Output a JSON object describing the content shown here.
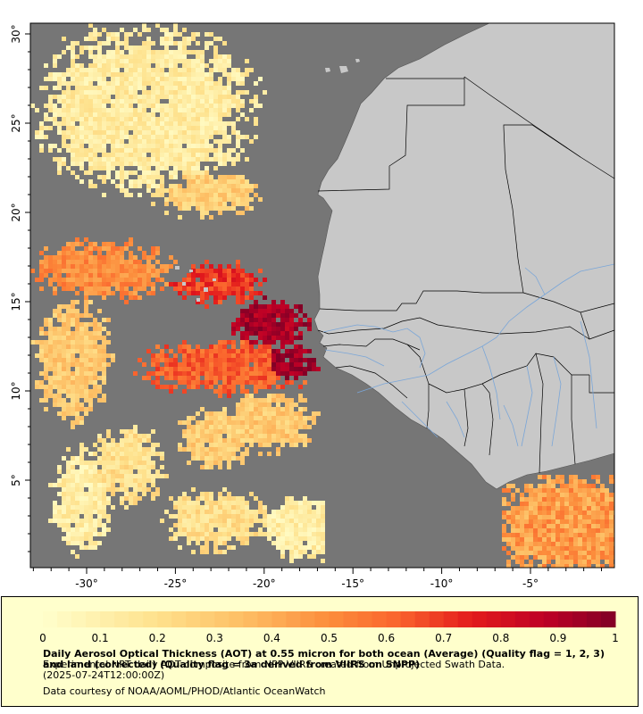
{
  "map": {
    "lat_ticks": [
      "30°",
      "25°",
      "20°",
      "15°",
      "10°",
      "5°"
    ],
    "lon_ticks": [
      "-30°",
      "-25°",
      "-20°",
      "-15°",
      "-10°",
      "-5°"
    ],
    "lat_range": [
      0,
      30.5
    ],
    "lon_range": [
      -33.2,
      0.5
    ],
    "colors": {
      "ocean_nodata": "#767676",
      "land": "#c8c8c8",
      "borders": "#000000",
      "rivers": "#7aa6d8",
      "frame": "#000000"
    }
  },
  "colorbar": {
    "ticks": [
      "0",
      "0.1",
      "0.2",
      "0.3",
      "0.4",
      "0.5",
      "0.6",
      "0.7",
      "0.8",
      "0.9",
      "1"
    ],
    "min": 0,
    "max": 1,
    "colormap": "YlOrRd"
  },
  "caption": {
    "title": "Daily Aerosol Optical Thickness (AOT) at 0.55 micron for both ocean (Average) (Quality flag = 1, 2, 3) and land (corrected) (Quality flag = 3a derived from VIIRS on SNPP)",
    "description": "Experimental NRT daily AOT composite from NPP VIIRS created from Unprojected Swath Data.",
    "date": "(2025-07-24T12:00:00Z)",
    "credit": "Data courtesy of NOAA/AOML/PHOD/Atlantic OceanWatch"
  }
}
